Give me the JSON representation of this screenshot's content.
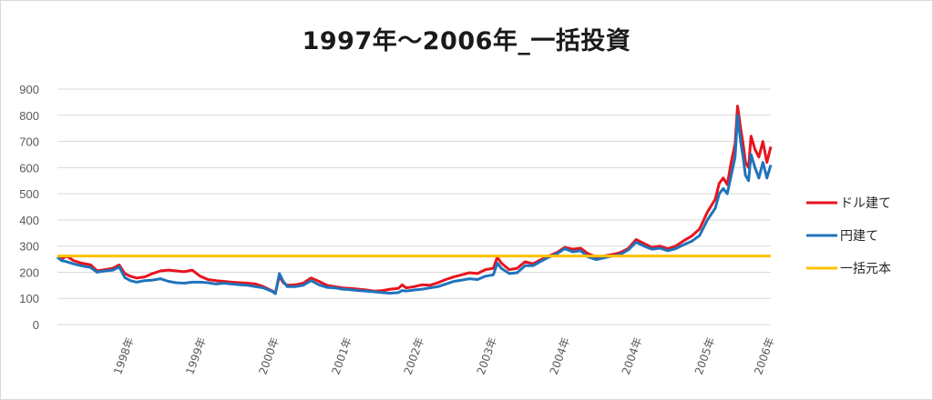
{
  "chart_data": {
    "type": "line",
    "title": "1997年～2006年_一括投資",
    "ylim": [
      0,
      900
    ],
    "yticks": [
      0,
      100,
      200,
      300,
      400,
      500,
      600,
      700,
      800,
      900
    ],
    "xlim": [
      1997.0,
      2006.0
    ],
    "x_tick_labels": [
      {
        "x": 1997.92,
        "label": "1998年"
      },
      {
        "x": 1998.83,
        "label": "1999年"
      },
      {
        "x": 1999.75,
        "label": "2000年"
      },
      {
        "x": 2000.67,
        "label": "2001年"
      },
      {
        "x": 2001.58,
        "label": "2002年"
      },
      {
        "x": 2002.5,
        "label": "2003年"
      },
      {
        "x": 2003.42,
        "label": "2004年"
      },
      {
        "x": 2004.33,
        "label": "2004年"
      },
      {
        "x": 2005.25,
        "label": "2005年"
      },
      {
        "x": 2006.0,
        "label": "2006年"
      }
    ],
    "grid": true,
    "legend_position": "right",
    "series": [
      {
        "name": "ドル建て",
        "color": "#e8141e",
        "points": [
          [
            1997.0,
            258
          ],
          [
            1997.05,
            250
          ],
          [
            1997.12,
            262
          ],
          [
            1997.2,
            245
          ],
          [
            1997.3,
            235
          ],
          [
            1997.42,
            228
          ],
          [
            1997.5,
            205
          ],
          [
            1997.6,
            210
          ],
          [
            1997.7,
            215
          ],
          [
            1997.78,
            228
          ],
          [
            1997.85,
            195
          ],
          [
            1997.92,
            185
          ],
          [
            1998.0,
            178
          ],
          [
            1998.1,
            182
          ],
          [
            1998.2,
            195
          ],
          [
            1998.3,
            205
          ],
          [
            1998.4,
            208
          ],
          [
            1998.5,
            205
          ],
          [
            1998.6,
            202
          ],
          [
            1998.7,
            208
          ],
          [
            1998.8,
            185
          ],
          [
            1998.9,
            172
          ],
          [
            1999.0,
            168
          ],
          [
            1999.1,
            165
          ],
          [
            1999.2,
            162
          ],
          [
            1999.3,
            160
          ],
          [
            1999.4,
            158
          ],
          [
            1999.5,
            155
          ],
          [
            1999.6,
            145
          ],
          [
            1999.7,
            130
          ],
          [
            1999.75,
            122
          ],
          [
            1999.8,
            185
          ],
          [
            1999.85,
            160
          ],
          [
            1999.9,
            150
          ],
          [
            2000.0,
            152
          ],
          [
            2000.1,
            158
          ],
          [
            2000.2,
            178
          ],
          [
            2000.3,
            165
          ],
          [
            2000.4,
            150
          ],
          [
            2000.5,
            145
          ],
          [
            2000.6,
            140
          ],
          [
            2000.7,
            138
          ],
          [
            2000.8,
            135
          ],
          [
            2000.9,
            132
          ],
          [
            2001.0,
            128
          ],
          [
            2001.1,
            130
          ],
          [
            2001.2,
            135
          ],
          [
            2001.3,
            138
          ],
          [
            2001.35,
            152
          ],
          [
            2001.4,
            140
          ],
          [
            2001.5,
            145
          ],
          [
            2001.6,
            152
          ],
          [
            2001.7,
            150
          ],
          [
            2001.8,
            160
          ],
          [
            2001.9,
            172
          ],
          [
            2002.0,
            182
          ],
          [
            2002.1,
            190
          ],
          [
            2002.2,
            198
          ],
          [
            2002.3,
            195
          ],
          [
            2002.4,
            210
          ],
          [
            2002.5,
            215
          ],
          [
            2002.55,
            258
          ],
          [
            2002.6,
            235
          ],
          [
            2002.7,
            210
          ],
          [
            2002.8,
            215
          ],
          [
            2002.9,
            240
          ],
          [
            2003.0,
            232
          ],
          [
            2003.1,
            248
          ],
          [
            2003.2,
            262
          ],
          [
            2003.3,
            275
          ],
          [
            2003.4,
            295
          ],
          [
            2003.5,
            288
          ],
          [
            2003.6,
            292
          ],
          [
            2003.7,
            270
          ],
          [
            2003.8,
            258
          ],
          [
            2003.9,
            262
          ],
          [
            2004.0,
            268
          ],
          [
            2004.1,
            275
          ],
          [
            2004.2,
            290
          ],
          [
            2004.3,
            325
          ],
          [
            2004.4,
            310
          ],
          [
            2004.5,
            295
          ],
          [
            2004.6,
            300
          ],
          [
            2004.7,
            290
          ],
          [
            2004.8,
            300
          ],
          [
            2004.9,
            320
          ],
          [
            2005.0,
            338
          ],
          [
            2005.1,
            365
          ],
          [
            2005.2,
            430
          ],
          [
            2005.3,
            480
          ],
          [
            2005.35,
            540
          ],
          [
            2005.4,
            560
          ],
          [
            2005.45,
            535
          ],
          [
            2005.5,
            620
          ],
          [
            2005.55,
            690
          ],
          [
            2005.58,
            835
          ],
          [
            2005.62,
            750
          ],
          [
            2005.65,
            690
          ],
          [
            2005.68,
            620
          ],
          [
            2005.72,
            600
          ],
          [
            2005.75,
            720
          ],
          [
            2005.8,
            670
          ],
          [
            2005.85,
            640
          ],
          [
            2005.9,
            700
          ],
          [
            2005.95,
            620
          ],
          [
            2006.0,
            680
          ]
        ]
      },
      {
        "name": "円建て",
        "color": "#1f73bc",
        "points": [
          [
            1997.0,
            258
          ],
          [
            1997.05,
            245
          ],
          [
            1997.12,
            240
          ],
          [
            1997.2,
            232
          ],
          [
            1997.3,
            225
          ],
          [
            1997.42,
            218
          ],
          [
            1997.5,
            200
          ],
          [
            1997.6,
            205
          ],
          [
            1997.7,
            208
          ],
          [
            1997.78,
            220
          ],
          [
            1997.85,
            180
          ],
          [
            1997.92,
            168
          ],
          [
            1998.0,
            162
          ],
          [
            1998.1,
            168
          ],
          [
            1998.2,
            170
          ],
          [
            1998.3,
            175
          ],
          [
            1998.4,
            165
          ],
          [
            1998.5,
            160
          ],
          [
            1998.6,
            158
          ],
          [
            1998.7,
            162
          ],
          [
            1998.8,
            162
          ],
          [
            1998.9,
            160
          ],
          [
            1999.0,
            155
          ],
          [
            1999.1,
            158
          ],
          [
            1999.2,
            155
          ],
          [
            1999.3,
            152
          ],
          [
            1999.4,
            150
          ],
          [
            1999.5,
            145
          ],
          [
            1999.6,
            140
          ],
          [
            1999.7,
            128
          ],
          [
            1999.75,
            118
          ],
          [
            1999.8,
            195
          ],
          [
            1999.85,
            165
          ],
          [
            1999.9,
            145
          ],
          [
            2000.0,
            145
          ],
          [
            2000.1,
            150
          ],
          [
            2000.2,
            168
          ],
          [
            2000.3,
            152
          ],
          [
            2000.4,
            142
          ],
          [
            2000.5,
            140
          ],
          [
            2000.6,
            135
          ],
          [
            2000.7,
            133
          ],
          [
            2000.8,
            130
          ],
          [
            2000.9,
            128
          ],
          [
            2001.0,
            125
          ],
          [
            2001.1,
            122
          ],
          [
            2001.2,
            120
          ],
          [
            2001.3,
            122
          ],
          [
            2001.35,
            130
          ],
          [
            2001.4,
            128
          ],
          [
            2001.5,
            132
          ],
          [
            2001.6,
            135
          ],
          [
            2001.7,
            140
          ],
          [
            2001.8,
            145
          ],
          [
            2001.9,
            155
          ],
          [
            2002.0,
            165
          ],
          [
            2002.1,
            170
          ],
          [
            2002.2,
            175
          ],
          [
            2002.3,
            172
          ],
          [
            2002.4,
            185
          ],
          [
            2002.5,
            190
          ],
          [
            2002.55,
            235
          ],
          [
            2002.6,
            215
          ],
          [
            2002.7,
            195
          ],
          [
            2002.8,
            198
          ],
          [
            2002.9,
            225
          ],
          [
            2003.0,
            225
          ],
          [
            2003.1,
            242
          ],
          [
            2003.2,
            258
          ],
          [
            2003.3,
            270
          ],
          [
            2003.4,
            290
          ],
          [
            2003.5,
            278
          ],
          [
            2003.6,
            282
          ],
          [
            2003.7,
            258
          ],
          [
            2003.8,
            248
          ],
          [
            2003.9,
            255
          ],
          [
            2004.0,
            262
          ],
          [
            2004.1,
            268
          ],
          [
            2004.2,
            285
          ],
          [
            2004.3,
            315
          ],
          [
            2004.4,
            300
          ],
          [
            2004.5,
            288
          ],
          [
            2004.6,
            292
          ],
          [
            2004.7,
            282
          ],
          [
            2004.8,
            290
          ],
          [
            2004.9,
            305
          ],
          [
            2005.0,
            318
          ],
          [
            2005.1,
            340
          ],
          [
            2005.2,
            400
          ],
          [
            2005.3,
            445
          ],
          [
            2005.35,
            500
          ],
          [
            2005.4,
            520
          ],
          [
            2005.45,
            500
          ],
          [
            2005.5,
            570
          ],
          [
            2005.55,
            640
          ],
          [
            2005.58,
            800
          ],
          [
            2005.62,
            700
          ],
          [
            2005.65,
            640
          ],
          [
            2005.68,
            570
          ],
          [
            2005.72,
            550
          ],
          [
            2005.75,
            650
          ],
          [
            2005.8,
            600
          ],
          [
            2005.85,
            560
          ],
          [
            2005.9,
            620
          ],
          [
            2005.95,
            560
          ],
          [
            2006.0,
            610
          ]
        ]
      },
      {
        "name": "一括元本",
        "color": "#ffc000",
        "points": [
          [
            1997.0,
            262
          ],
          [
            2006.0,
            262
          ]
        ]
      }
    ]
  }
}
